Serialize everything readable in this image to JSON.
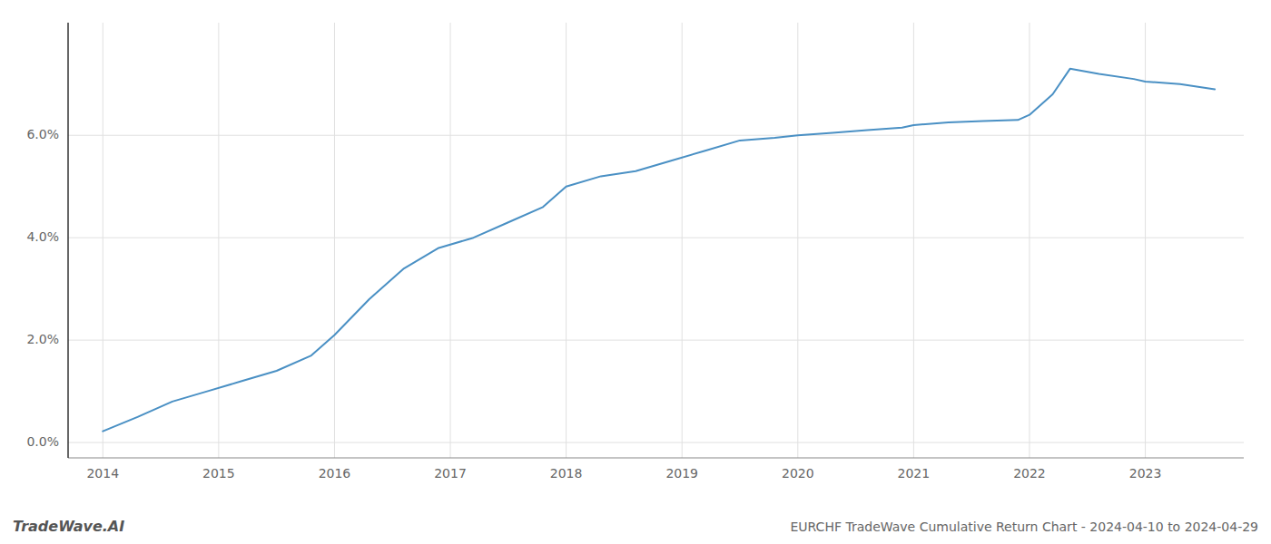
{
  "chart_data": {
    "type": "line",
    "title": "EURCHF TradeWave Cumulative Return Chart - 2024-04-10 to 2024-04-29",
    "annotations": [
      "TradeWave.AI"
    ],
    "x": [
      2014.0,
      2014.3,
      2014.6,
      2014.9,
      2015.2,
      2015.5,
      2015.8,
      2016.0,
      2016.3,
      2016.6,
      2016.9,
      2017.2,
      2017.5,
      2017.8,
      2018.0,
      2018.3,
      2018.6,
      2018.9,
      2019.2,
      2019.5,
      2019.8,
      2020.0,
      2020.3,
      2020.6,
      2020.9,
      2021.0,
      2021.3,
      2021.6,
      2021.9,
      2022.0,
      2022.2,
      2022.35,
      2022.6,
      2022.9,
      2023.0,
      2023.3,
      2023.6
    ],
    "values": [
      0.0022,
      0.005,
      0.008,
      0.01,
      0.012,
      0.014,
      0.017,
      0.021,
      0.028,
      0.034,
      0.038,
      0.04,
      0.043,
      0.046,
      0.05,
      0.052,
      0.053,
      0.055,
      0.057,
      0.059,
      0.0595,
      0.06,
      0.0605,
      0.061,
      0.0615,
      0.062,
      0.0625,
      0.0628,
      0.063,
      0.064,
      0.068,
      0.073,
      0.072,
      0.071,
      0.0705,
      0.07,
      0.069
    ],
    "color": "#4a90c4",
    "xlim": [
      2013.7,
      2023.85
    ],
    "xticks": [
      2014,
      2015,
      2016,
      2017,
      2018,
      2019,
      2020,
      2021,
      2022,
      2023
    ],
    "ylim": [
      -0.003,
      0.082
    ],
    "yticks": [
      {
        "value": 0.0,
        "label": "0.0%"
      },
      {
        "value": 0.02,
        "label": "2.0%"
      },
      {
        "value": 0.04,
        "label": "4.0%"
      },
      {
        "value": 0.06,
        "label": "6.0%"
      }
    ],
    "grid": true
  }
}
